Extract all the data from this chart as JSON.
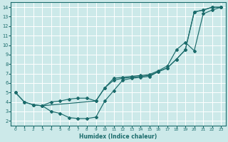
{
  "xlabel": "Humidex (Indice chaleur)",
  "bg_color": "#cce9e9",
  "line_color": "#1a6b6b",
  "grid_color": "#ffffff",
  "xlim": [
    -0.5,
    23.5
  ],
  "ylim": [
    1.5,
    14.5
  ],
  "xticks": [
    0,
    1,
    2,
    3,
    4,
    5,
    6,
    7,
    8,
    9,
    10,
    11,
    12,
    13,
    14,
    15,
    16,
    17,
    18,
    19,
    20,
    21,
    22,
    23
  ],
  "yticks": [
    2,
    3,
    4,
    5,
    6,
    7,
    8,
    9,
    10,
    11,
    12,
    13,
    14
  ],
  "line1_x": [
    0,
    1,
    2,
    3,
    9,
    10,
    11,
    12,
    13,
    14,
    15,
    16,
    17,
    18,
    19,
    20,
    21,
    22,
    23
  ],
  "line1_y": [
    5.0,
    4.0,
    3.7,
    3.6,
    4.1,
    5.5,
    6.5,
    6.6,
    6.7,
    6.8,
    6.9,
    7.3,
    7.8,
    9.5,
    10.3,
    9.4,
    13.3,
    13.7,
    14.0
  ],
  "line2_x": [
    0,
    1,
    2,
    3,
    4,
    5,
    6,
    7,
    8,
    9,
    10,
    11,
    12,
    13,
    14,
    15,
    16,
    17,
    18,
    19,
    20,
    21,
    22,
    23
  ],
  "line2_y": [
    5.0,
    4.0,
    3.7,
    3.6,
    4.0,
    4.1,
    4.3,
    4.4,
    4.4,
    4.1,
    5.5,
    6.3,
    6.5,
    6.6,
    6.7,
    6.8,
    7.2,
    7.6,
    8.5,
    9.5,
    13.5,
    13.7,
    14.0,
    14.0
  ],
  "line3_x": [
    3,
    4,
    5,
    6,
    7,
    8,
    9,
    10,
    11,
    12,
    13,
    14,
    15,
    16,
    17,
    18,
    19,
    20,
    21,
    22,
    23
  ],
  "line3_y": [
    3.6,
    3.0,
    2.8,
    2.35,
    2.25,
    2.25,
    2.4,
    4.1,
    5.2,
    6.3,
    6.5,
    6.6,
    6.7,
    7.2,
    7.6,
    8.5,
    9.5,
    13.5,
    13.7,
    14.0,
    14.0
  ]
}
